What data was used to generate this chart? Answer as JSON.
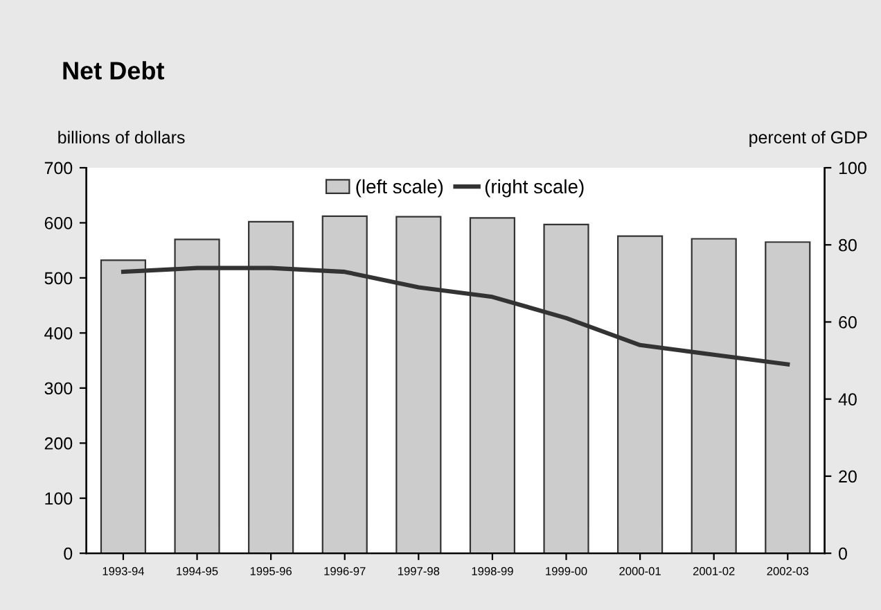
{
  "chart_data": {
    "type": "bar",
    "title": "Net Debt",
    "ylabel": "billions of dollars",
    "y2label": "percent of GDP",
    "categories": [
      "1993-94",
      "1994-95",
      "1995-96",
      "1996-97",
      "1997-98",
      "1998-99",
      "1999-00",
      "2000-01",
      "2001-02",
      "2002-03"
    ],
    "series": [
      {
        "name": "(left scale)",
        "color": "#cccccc",
        "values": [
          532,
          570,
          602,
          612,
          611,
          609,
          597,
          576,
          571,
          565
        ]
      },
      {
        "name": "(right scale)",
        "type": "line",
        "axis": "y2",
        "color": "#333333",
        "values": [
          73,
          74,
          74,
          73,
          69,
          66.5,
          61,
          54,
          51.5,
          49
        ]
      }
    ],
    "ylim": [
      0,
      700
    ],
    "yticks": [
      0,
      100,
      200,
      300,
      400,
      500,
      600,
      700
    ],
    "y2lim": [
      0,
      100
    ],
    "y2ticks": [
      0,
      20,
      40,
      60,
      80,
      100
    ],
    "legend": "top",
    "grid": false,
    "marker": "none",
    "line_style": "solid"
  }
}
